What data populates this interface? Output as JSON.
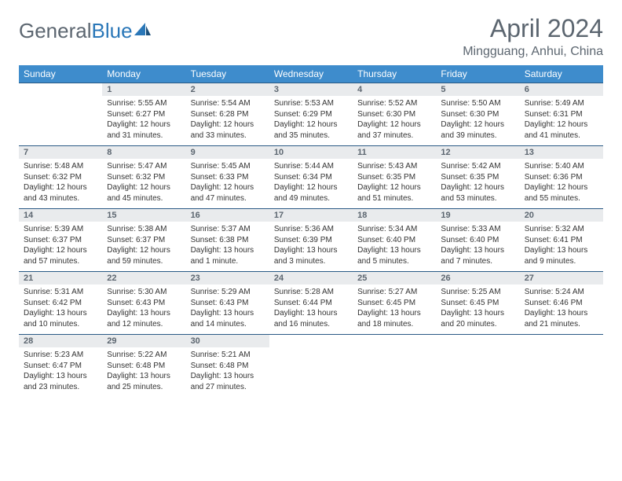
{
  "logo": {
    "part1": "General",
    "part2": "Blue"
  },
  "title": "April 2024",
  "location": "Mingguang, Anhui, China",
  "colors": {
    "header_bg": "#3e8ccc",
    "header_text": "#ffffff",
    "daynum_bg": "#e9ebed",
    "daynum_text": "#5c6670",
    "rule": "#2a5a85",
    "body_text": "#333333",
    "title_text": "#5c6670"
  },
  "weekdays": [
    "Sunday",
    "Monday",
    "Tuesday",
    "Wednesday",
    "Thursday",
    "Friday",
    "Saturday"
  ],
  "weeks": [
    {
      "nums": [
        "",
        "1",
        "2",
        "3",
        "4",
        "5",
        "6"
      ],
      "cells": [
        null,
        {
          "sunrise": "Sunrise: 5:55 AM",
          "sunset": "Sunset: 6:27 PM",
          "day1": "Daylight: 12 hours",
          "day2": "and 31 minutes."
        },
        {
          "sunrise": "Sunrise: 5:54 AM",
          "sunset": "Sunset: 6:28 PM",
          "day1": "Daylight: 12 hours",
          "day2": "and 33 minutes."
        },
        {
          "sunrise": "Sunrise: 5:53 AM",
          "sunset": "Sunset: 6:29 PM",
          "day1": "Daylight: 12 hours",
          "day2": "and 35 minutes."
        },
        {
          "sunrise": "Sunrise: 5:52 AM",
          "sunset": "Sunset: 6:30 PM",
          "day1": "Daylight: 12 hours",
          "day2": "and 37 minutes."
        },
        {
          "sunrise": "Sunrise: 5:50 AM",
          "sunset": "Sunset: 6:30 PM",
          "day1": "Daylight: 12 hours",
          "day2": "and 39 minutes."
        },
        {
          "sunrise": "Sunrise: 5:49 AM",
          "sunset": "Sunset: 6:31 PM",
          "day1": "Daylight: 12 hours",
          "day2": "and 41 minutes."
        }
      ]
    },
    {
      "nums": [
        "7",
        "8",
        "9",
        "10",
        "11",
        "12",
        "13"
      ],
      "cells": [
        {
          "sunrise": "Sunrise: 5:48 AM",
          "sunset": "Sunset: 6:32 PM",
          "day1": "Daylight: 12 hours",
          "day2": "and 43 minutes."
        },
        {
          "sunrise": "Sunrise: 5:47 AM",
          "sunset": "Sunset: 6:32 PM",
          "day1": "Daylight: 12 hours",
          "day2": "and 45 minutes."
        },
        {
          "sunrise": "Sunrise: 5:45 AM",
          "sunset": "Sunset: 6:33 PM",
          "day1": "Daylight: 12 hours",
          "day2": "and 47 minutes."
        },
        {
          "sunrise": "Sunrise: 5:44 AM",
          "sunset": "Sunset: 6:34 PM",
          "day1": "Daylight: 12 hours",
          "day2": "and 49 minutes."
        },
        {
          "sunrise": "Sunrise: 5:43 AM",
          "sunset": "Sunset: 6:35 PM",
          "day1": "Daylight: 12 hours",
          "day2": "and 51 minutes."
        },
        {
          "sunrise": "Sunrise: 5:42 AM",
          "sunset": "Sunset: 6:35 PM",
          "day1": "Daylight: 12 hours",
          "day2": "and 53 minutes."
        },
        {
          "sunrise": "Sunrise: 5:40 AM",
          "sunset": "Sunset: 6:36 PM",
          "day1": "Daylight: 12 hours",
          "day2": "and 55 minutes."
        }
      ]
    },
    {
      "nums": [
        "14",
        "15",
        "16",
        "17",
        "18",
        "19",
        "20"
      ],
      "cells": [
        {
          "sunrise": "Sunrise: 5:39 AM",
          "sunset": "Sunset: 6:37 PM",
          "day1": "Daylight: 12 hours",
          "day2": "and 57 minutes."
        },
        {
          "sunrise": "Sunrise: 5:38 AM",
          "sunset": "Sunset: 6:37 PM",
          "day1": "Daylight: 12 hours",
          "day2": "and 59 minutes."
        },
        {
          "sunrise": "Sunrise: 5:37 AM",
          "sunset": "Sunset: 6:38 PM",
          "day1": "Daylight: 13 hours",
          "day2": "and 1 minute."
        },
        {
          "sunrise": "Sunrise: 5:36 AM",
          "sunset": "Sunset: 6:39 PM",
          "day1": "Daylight: 13 hours",
          "day2": "and 3 minutes."
        },
        {
          "sunrise": "Sunrise: 5:34 AM",
          "sunset": "Sunset: 6:40 PM",
          "day1": "Daylight: 13 hours",
          "day2": "and 5 minutes."
        },
        {
          "sunrise": "Sunrise: 5:33 AM",
          "sunset": "Sunset: 6:40 PM",
          "day1": "Daylight: 13 hours",
          "day2": "and 7 minutes."
        },
        {
          "sunrise": "Sunrise: 5:32 AM",
          "sunset": "Sunset: 6:41 PM",
          "day1": "Daylight: 13 hours",
          "day2": "and 9 minutes."
        }
      ]
    },
    {
      "nums": [
        "21",
        "22",
        "23",
        "24",
        "25",
        "26",
        "27"
      ],
      "cells": [
        {
          "sunrise": "Sunrise: 5:31 AM",
          "sunset": "Sunset: 6:42 PM",
          "day1": "Daylight: 13 hours",
          "day2": "and 10 minutes."
        },
        {
          "sunrise": "Sunrise: 5:30 AM",
          "sunset": "Sunset: 6:43 PM",
          "day1": "Daylight: 13 hours",
          "day2": "and 12 minutes."
        },
        {
          "sunrise": "Sunrise: 5:29 AM",
          "sunset": "Sunset: 6:43 PM",
          "day1": "Daylight: 13 hours",
          "day2": "and 14 minutes."
        },
        {
          "sunrise": "Sunrise: 5:28 AM",
          "sunset": "Sunset: 6:44 PM",
          "day1": "Daylight: 13 hours",
          "day2": "and 16 minutes."
        },
        {
          "sunrise": "Sunrise: 5:27 AM",
          "sunset": "Sunset: 6:45 PM",
          "day1": "Daylight: 13 hours",
          "day2": "and 18 minutes."
        },
        {
          "sunrise": "Sunrise: 5:25 AM",
          "sunset": "Sunset: 6:45 PM",
          "day1": "Daylight: 13 hours",
          "day2": "and 20 minutes."
        },
        {
          "sunrise": "Sunrise: 5:24 AM",
          "sunset": "Sunset: 6:46 PM",
          "day1": "Daylight: 13 hours",
          "day2": "and 21 minutes."
        }
      ]
    },
    {
      "nums": [
        "28",
        "29",
        "30",
        "",
        "",
        "",
        ""
      ],
      "cells": [
        {
          "sunrise": "Sunrise: 5:23 AM",
          "sunset": "Sunset: 6:47 PM",
          "day1": "Daylight: 13 hours",
          "day2": "and 23 minutes."
        },
        {
          "sunrise": "Sunrise: 5:22 AM",
          "sunset": "Sunset: 6:48 PM",
          "day1": "Daylight: 13 hours",
          "day2": "and 25 minutes."
        },
        {
          "sunrise": "Sunrise: 5:21 AM",
          "sunset": "Sunset: 6:48 PM",
          "day1": "Daylight: 13 hours",
          "day2": "and 27 minutes."
        },
        null,
        null,
        null,
        null
      ]
    }
  ]
}
